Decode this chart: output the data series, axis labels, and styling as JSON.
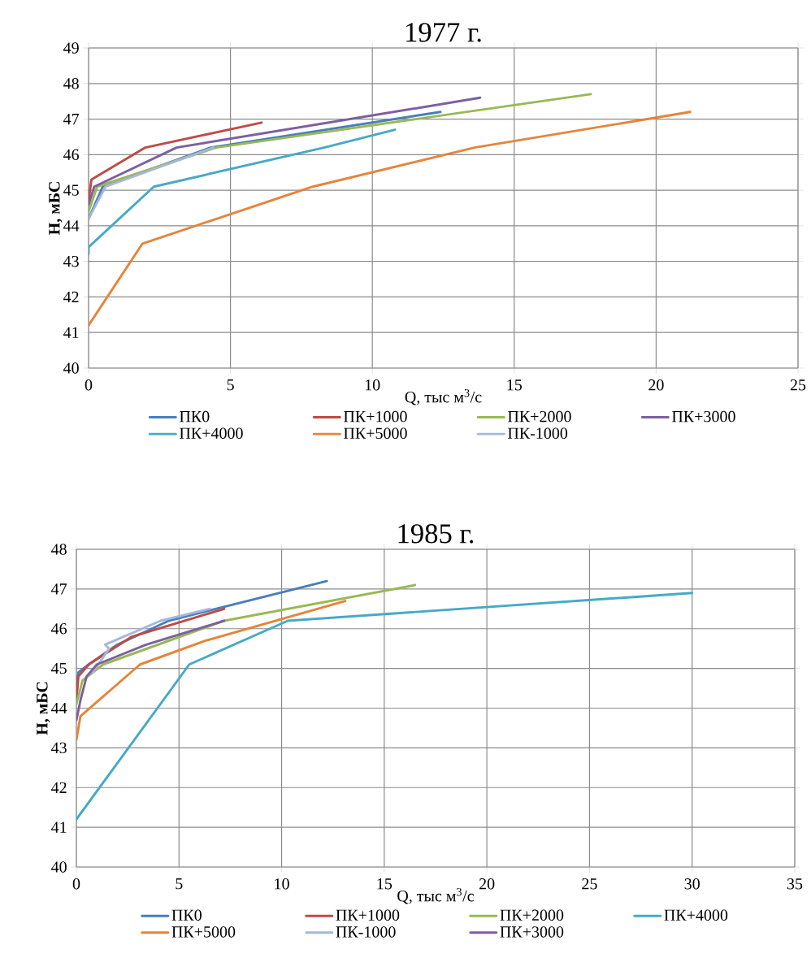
{
  "chart_data": [
    {
      "type": "line",
      "title": "1977 г.",
      "xlabel": "Q, тыс м$^{3}$/с",
      "ylabel": "H, мБС",
      "xlim": [
        0,
        25
      ],
      "ylim": [
        40,
        49
      ],
      "xticks": [
        0,
        5,
        10,
        15,
        20,
        25
      ],
      "yticks": [
        40,
        41,
        42,
        43,
        44,
        45,
        46,
        47,
        48,
        49
      ],
      "grid": true,
      "legend": "bottom",
      "series": [
        {
          "name": "ПК0",
          "color": "#4a7ebb",
          "x": [
            0,
            0.5,
            4.3,
            12.4
          ],
          "values": [
            44.2,
            45.1,
            46.2,
            47.2
          ]
        },
        {
          "name": "ПК+1000",
          "color": "#be4b48",
          "x": [
            0,
            0.1,
            2,
            6.1
          ],
          "values": [
            44.7,
            45.3,
            46.2,
            46.9
          ]
        },
        {
          "name": "ПК+2000",
          "color": "#98b954",
          "x": [
            0,
            0.3,
            4.5,
            17.7
          ],
          "values": [
            44.4,
            45.1,
            46.2,
            47.7
          ]
        },
        {
          "name": "ПК+3000",
          "color": "#7d60a0",
          "x": [
            0,
            0.2,
            3.1,
            13.8
          ],
          "values": [
            44.6,
            45.1,
            46.2,
            47.6
          ]
        },
        {
          "name": "ПК+4000",
          "color": "#46aac5",
          "x": [
            0,
            0,
            2.3,
            8.3,
            10.8
          ],
          "values": [
            43.2,
            43.4,
            45.1,
            46.2,
            46.7
          ]
        },
        {
          "name": "ПК+5000",
          "color": "#e6843a",
          "x": [
            0,
            1.9,
            7.9,
            13.6,
            21.2
          ],
          "values": [
            41.2,
            43.5,
            45.1,
            46.2,
            47.2
          ]
        },
        {
          "name": "ПК-1000",
          "color": "#a5b8da",
          "x": [
            0,
            0.6,
            4.4
          ],
          "values": [
            44.2,
            45.1,
            46.2
          ]
        }
      ]
    },
    {
      "type": "line",
      "title": "1985 г.",
      "xlabel": "Q, тыс м$^{3}$/с",
      "ylabel": "H, мБС",
      "xlim": [
        0,
        35
      ],
      "ylim": [
        40,
        48
      ],
      "xticks": [
        0,
        5,
        10,
        15,
        20,
        25,
        30,
        35
      ],
      "yticks": [
        40,
        41,
        42,
        43,
        44,
        45,
        46,
        47,
        48
      ],
      "grid": true,
      "legend": "bottom",
      "series": [
        {
          "name": "ПК0",
          "color": "#4a7ebb",
          "x": [
            0,
            0.1,
            0.6,
            2,
            4.5,
            12.2
          ],
          "values": [
            44.6,
            44.9,
            45.1,
            45.6,
            46.2,
            47.2
          ]
        },
        {
          "name": "ПК+1000",
          "color": "#be4b48",
          "x": [
            0,
            0.1,
            0.6,
            2.7,
            7.2
          ],
          "values": [
            44.2,
            44.8,
            45.1,
            45.8,
            46.5
          ]
        },
        {
          "name": "ПК+2000",
          "color": "#98b954",
          "x": [
            0,
            0.3,
            1.3,
            7.2,
            16.5
          ],
          "values": [
            44.1,
            44.7,
            45.1,
            46.2,
            47.1
          ]
        },
        {
          "name": "ПК+4000",
          "color": "#46aac5",
          "x": [
            0,
            5.5,
            10.3,
            30
          ],
          "values": [
            41.2,
            45.1,
            46.2,
            46.9
          ]
        },
        {
          "name": "ПК+5000",
          "color": "#e6843a",
          "x": [
            0,
            0.2,
            3.1,
            6.3,
            13.1
          ],
          "values": [
            43.2,
            43.8,
            45.1,
            45.7,
            46.7
          ]
        },
        {
          "name": "ПК-1000",
          "color": "#a5b8da",
          "x": [
            0.8,
            1.6,
            1.4,
            4.1,
            6.5
          ],
          "values": [
            44.9,
            45.5,
            45.6,
            46.2,
            46.5
          ]
        },
        {
          "name": "ПК+3000",
          "color": "#7d60a0",
          "x": [
            0,
            0.2,
            0.5,
            1,
            3.4,
            7.2
          ],
          "values": [
            43.7,
            44.2,
            44.8,
            45.1,
            45.6,
            46.2
          ]
        }
      ]
    }
  ]
}
